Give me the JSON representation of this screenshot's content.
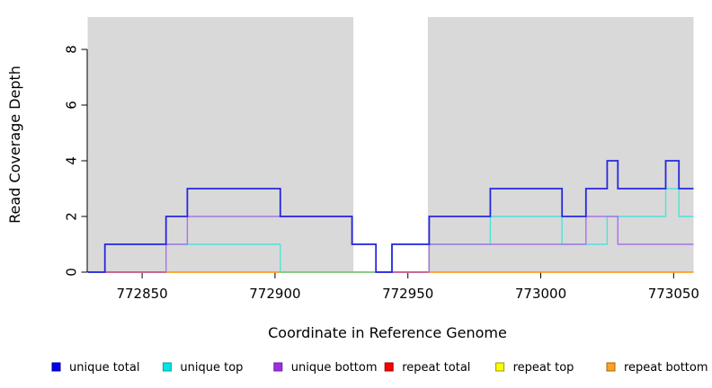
{
  "chart_data": {
    "type": "line",
    "subtype": "step-coverage-plot",
    "title": "",
    "xlabel": "Coordinate in Reference Genome",
    "ylabel": "Read Coverage Depth",
    "xlim": [
      772829.5,
      773057.5
    ],
    "ylim": [
      0,
      9.16
    ],
    "x_ticks": [
      772850,
      772900,
      772950,
      773000,
      773050
    ],
    "x_tick_labels": [
      "772850",
      "772900",
      "772950",
      "773000",
      "773050"
    ],
    "y_ticks": [
      0,
      2,
      4,
      6,
      8
    ],
    "y_tick_labels": [
      "0",
      "2",
      "4",
      "6",
      "8"
    ],
    "grid": "off",
    "panel_bg": "#d9d9d9",
    "gap_region": {
      "start": 772929.5,
      "end": 772957.5,
      "color": "#ffffff"
    },
    "series": [
      {
        "name": "repeat total",
        "color": "#ee1111",
        "width": 1.2,
        "breakpoints": [
          [
            772829.5,
            0
          ]
        ]
      },
      {
        "name": "repeat top",
        "color": "#ffff00",
        "width": 1.2,
        "breakpoints": [
          [
            772829.5,
            0
          ]
        ]
      },
      {
        "name": "repeat bottom",
        "color": "#ff9d23",
        "width": 1.5,
        "breakpoints": [
          [
            772829.5,
            0
          ]
        ]
      },
      {
        "name": "unique top",
        "color": "#4fe3d8",
        "width": 1.4,
        "breakpoints": [
          [
            772829.5,
            0
          ],
          [
            772836,
            1
          ],
          [
            772902,
            0
          ],
          [
            772944,
            1
          ],
          [
            772981,
            2
          ],
          [
            773008,
            1
          ],
          [
            773025,
            2
          ],
          [
            773047,
            3
          ],
          [
            773052,
            2
          ]
        ]
      },
      {
        "name": "unique bottom",
        "color": "#a873e8",
        "width": 1.4,
        "breakpoints": [
          [
            772829.5,
            0
          ],
          [
            772859,
            1
          ],
          [
            772867,
            2
          ],
          [
            772929,
            1
          ],
          [
            772938,
            0
          ],
          [
            772958,
            1
          ],
          [
            773017,
            2
          ],
          [
            773029,
            1
          ]
        ]
      },
      {
        "name": "unique total",
        "color": "#2727e0",
        "width": 1.8,
        "breakpoints": [
          [
            772829.5,
            0
          ],
          [
            772836,
            1
          ],
          [
            772859,
            2
          ],
          [
            772867,
            3
          ],
          [
            772902,
            2
          ],
          [
            772929,
            1
          ],
          [
            772938,
            0
          ],
          [
            772944,
            1
          ],
          [
            772958,
            2
          ],
          [
            772981,
            3
          ],
          [
            773008,
            2
          ],
          [
            773017,
            3
          ],
          [
            773025,
            4
          ],
          [
            773029,
            3
          ],
          [
            773047,
            4
          ],
          [
            773052,
            3
          ]
        ]
      }
    ],
    "baseline_overlays": [
      {
        "start": 772836,
        "end": 772859,
        "color": "#c75b8e"
      },
      {
        "start": 772902,
        "end": 772938,
        "color": "#82c882"
      },
      {
        "start": 772944,
        "end": 772957.5,
        "color": "#c75b8e"
      }
    ],
    "legend": {
      "position": "bottom",
      "items": [
        {
          "label": "unique total",
          "fill": "#0000e6",
          "border": "#0000a0"
        },
        {
          "label": "unique top",
          "fill": "#00e5e5",
          "border": "#00a0a0"
        },
        {
          "label": "unique bottom",
          "fill": "#9d2fe0",
          "border": "#6a1fa0"
        },
        {
          "label": "repeat total",
          "fill": "#f50000",
          "border": "#a00000"
        },
        {
          "label": "repeat top",
          "fill": "#ffff00",
          "border": "#999900"
        },
        {
          "label": "repeat bottom",
          "fill": "#ffa126",
          "border": "#a06a00"
        }
      ]
    }
  }
}
